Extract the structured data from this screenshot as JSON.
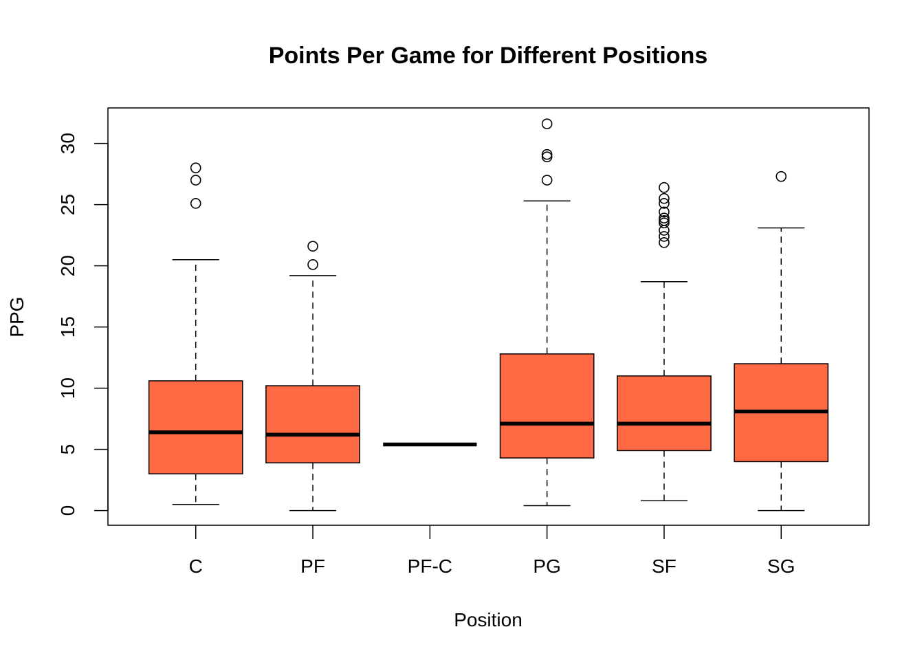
{
  "chart_data": {
    "type": "boxplot",
    "title": "Points Per Game for Different Positions",
    "xlabel": "Position",
    "ylabel": "PPG",
    "ylim": [
      -1.2,
      32.9
    ],
    "yticks": [
      0,
      5,
      10,
      15,
      20,
      25,
      30
    ],
    "categories": [
      "C",
      "PF",
      "PF-C",
      "PG",
      "SF",
      "SG"
    ],
    "box_color": "#FF6A45",
    "boxes": [
      {
        "category": "C",
        "whisker_low": 0.5,
        "q1": 3.0,
        "median": 6.4,
        "q3": 10.6,
        "whisker_high": 20.5,
        "outliers": [
          25.1,
          27.0,
          28.0
        ]
      },
      {
        "category": "PF",
        "whisker_low": 0.0,
        "q1": 3.9,
        "median": 6.2,
        "q3": 10.2,
        "whisker_high": 19.2,
        "outliers": [
          20.1,
          21.6
        ]
      },
      {
        "category": "PF-C",
        "whisker_low": 5.4,
        "q1": 5.4,
        "median": 5.4,
        "q3": 5.4,
        "whisker_high": 5.4,
        "outliers": []
      },
      {
        "category": "PG",
        "whisker_low": 0.4,
        "q1": 4.3,
        "median": 7.1,
        "q3": 12.8,
        "whisker_high": 25.3,
        "outliers": [
          27.0,
          28.9,
          29.1,
          31.6
        ]
      },
      {
        "category": "SF",
        "whisker_low": 0.8,
        "q1": 4.9,
        "median": 7.1,
        "q3": 11.0,
        "whisker_high": 18.7,
        "outliers": [
          21.9,
          22.4,
          22.9,
          23.5,
          23.7,
          23.9,
          24.4,
          25.1,
          25.5,
          26.4
        ]
      },
      {
        "category": "SG",
        "whisker_low": 0.0,
        "q1": 4.0,
        "median": 8.1,
        "q3": 12.0,
        "whisker_high": 23.1,
        "outliers": [
          27.3
        ]
      }
    ]
  }
}
